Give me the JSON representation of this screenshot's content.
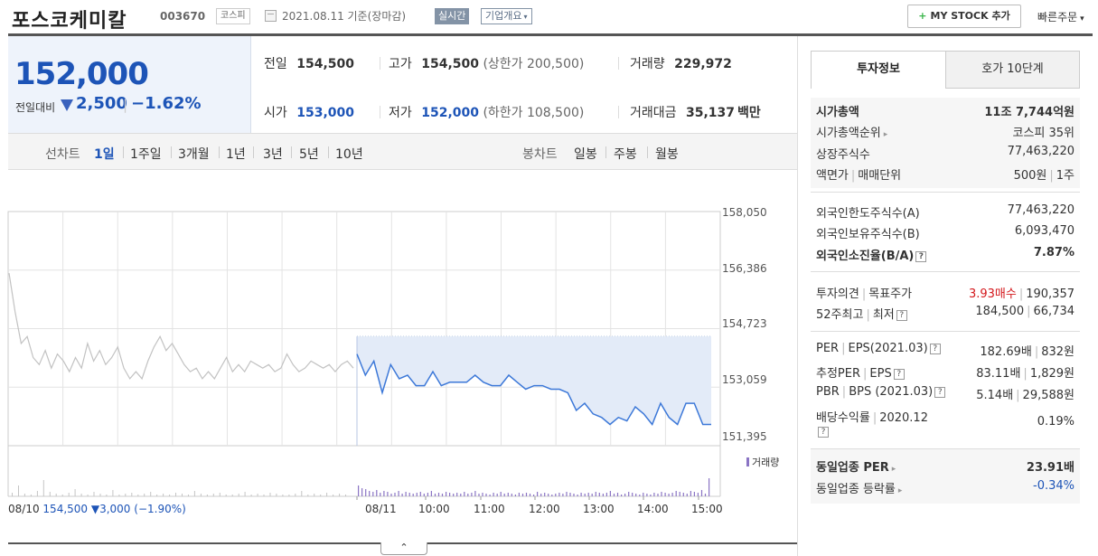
{
  "header": {
    "stock_name": "포스코케미칼",
    "stock_code": "003670",
    "market": "코스피",
    "date_text": "2021.08.11  기준(장마감)",
    "realtime": "실시간",
    "overview": "기업개요",
    "mystock": "MY STOCK 추가",
    "quick_order": "빠른주문"
  },
  "summary": {
    "current_price": "152,000",
    "change_label": "전일대비",
    "change_value": "2,500",
    "change_pct": "−1.62%",
    "prev_close_label": "전일",
    "prev_close": "154,500",
    "high_label": "고가",
    "high": "154,500",
    "upper_limit": "(상한가 200,500)",
    "volume_label": "거래량",
    "volume": "229,972",
    "open_label": "시가",
    "open": "153,000",
    "low_label": "저가",
    "low": "152,000",
    "lower_limit": "(하한가 108,500)",
    "amount_label": "거래대금",
    "amount": "35,137",
    "amount_unit": "백만"
  },
  "chart_tabs": {
    "line_label": "선차트",
    "line_tabs": [
      "1일",
      "1주일",
      "3개월",
      "1년",
      "3년",
      "5년",
      "10년"
    ],
    "selected": "1일",
    "candle_label": "봉차트",
    "candle_tabs": [
      "일봉",
      "주봉",
      "월봉"
    ]
  },
  "chart_data": {
    "type": "line",
    "y_ticks": [
      "158,050",
      "156,386",
      "154,723",
      "153,059",
      "151,395"
    ],
    "ylim": [
      151395,
      158050
    ],
    "x_ticks": [
      "08/10",
      "08/11",
      "10:00",
      "11:00",
      "12:00",
      "13:00",
      "14:00",
      "15:00"
    ],
    "prev_day_label": "08/10",
    "prev_day_summary": "154,500 ▼3,000 (−1.90%)",
    "volume_legend": "거래량",
    "series": [
      {
        "values": [
          156300,
          155200,
          154300,
          154500,
          153900,
          153700,
          154100,
          153600,
          154000,
          153800,
          153500,
          153900,
          153600,
          154300,
          153800,
          154100,
          153700,
          153900,
          154200,
          153600,
          153300,
          153500,
          153300,
          153800,
          154200,
          154500,
          154100,
          154300,
          154000,
          153700,
          153500,
          153600,
          153300,
          153500,
          153300,
          153600,
          153900,
          153500,
          153700,
          153500,
          153800,
          153700,
          153600,
          153700,
          153500,
          153600,
          154000,
          153700,
          153500,
          153600,
          153800,
          153700,
          153600,
          153700,
          153500,
          153700,
          153800,
          153600
        ]
      },
      {
        "values": [
          154000,
          153400,
          153800,
          152900,
          153700,
          153300,
          153400,
          153100,
          153100,
          153500,
          153100,
          153200,
          153200,
          153200,
          153400,
          153200,
          153100,
          153100,
          153400,
          153200,
          153000,
          153100,
          153100,
          153000,
          153000,
          152900,
          152400,
          152600,
          152300,
          152200,
          152000,
          152200,
          152100,
          152500,
          152300,
          152000,
          152600,
          152200,
          152000,
          152600,
          152600,
          152000,
          152000
        ]
      }
    ],
    "prev_close": 154500
  },
  "right_panel": {
    "tab_active": "투자정보",
    "tab_inactive": "호가 10단계",
    "market_cap_label": "시가총액",
    "market_cap": "11조 7,744억원",
    "rank_label": "시가총액순위",
    "rank": "코스피 35위",
    "shares_label": "상장주식수",
    "shares": "77,463,220",
    "par_label": "액면가",
    "unit_label": "매매단위",
    "par": "500원",
    "unit": "1주",
    "foreign_limit_label": "외국인한도주식수(A)",
    "foreign_limit": "77,463,220",
    "foreign_hold_label": "외국인보유주식수(B)",
    "foreign_hold": "6,093,470",
    "foreign_ratio_label": "외국인소진율(B/A)",
    "foreign_ratio": "7.87%",
    "opinion_label": "투자의견",
    "target_label": "목표주가",
    "opinion": "3.93매수",
    "target": "190,357",
    "w52_label": "52주최고",
    "w52_low_label": "최저",
    "w52_high": "184,500",
    "w52_low": "66,734",
    "per_label": "PER",
    "eps_label": "EPS(2021.03)",
    "per": "182.69배",
    "eps": "832원",
    "est_per_label": "추정PER",
    "est_eps_label": "EPS",
    "est_per": "83.11배",
    "est_eps": "1,829원",
    "pbr_label": "PBR",
    "bps_label": "BPS (2021.03)",
    "pbr": "5.14배",
    "bps": "29,588원",
    "div_label": "배당수익률",
    "div_year": "2020.12",
    "div": "0.19%",
    "sector_per_label": "동일업종 PER",
    "sector_per": "23.91배",
    "sector_chg_label": "동일업종 등락률",
    "sector_chg": "-0.34%"
  }
}
